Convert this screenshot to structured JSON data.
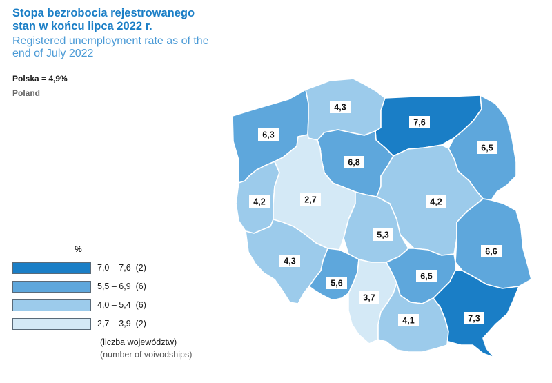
{
  "title": {
    "pl": "Stopa bezrobocia rejestrowanego stan w końcu lipca 2022 r.",
    "en": "Registered unemployment rate as of the end of July 2022"
  },
  "national": {
    "pl": "Polska = 4,9%",
    "en": "Poland"
  },
  "legend": {
    "unit": "%",
    "classes": [
      {
        "range": "7,0 – 7,6",
        "count": "(2)",
        "color": "#1a7ec6"
      },
      {
        "range": "5,5 – 6,9",
        "count": "(6)",
        "color": "#5ea7dc"
      },
      {
        "range": "4,0 – 5,4",
        "count": "(6)",
        "color": "#9ccbeb"
      },
      {
        "range": "2,7 – 3,9",
        "count": "(2)",
        "color": "#d4e9f6"
      }
    ],
    "note_pl": "(liczba województw)",
    "note_en": "(number of voivodships)"
  },
  "voivodships": [
    {
      "id": "zachodniopomorskie",
      "value": "6,3",
      "class": 1
    },
    {
      "id": "pomorskie",
      "value": "4,3",
      "class": 2
    },
    {
      "id": "warminsko-mazurskie",
      "value": "7,6",
      "class": 0
    },
    {
      "id": "podlaskie",
      "value": "6,5",
      "class": 1
    },
    {
      "id": "kujawsko-pomorskie",
      "value": "6,8",
      "class": 1
    },
    {
      "id": "lubuskie",
      "value": "4,2",
      "class": 2
    },
    {
      "id": "wielkopolskie",
      "value": "2,7",
      "class": 3
    },
    {
      "id": "mazowieckie",
      "value": "4,2",
      "class": 2
    },
    {
      "id": "lodzkie",
      "value": "5,3",
      "class": 2
    },
    {
      "id": "lubelskie",
      "value": "6,6",
      "class": 1
    },
    {
      "id": "dolnoslaskie",
      "value": "4,3",
      "class": 2
    },
    {
      "id": "opolskie",
      "value": "5,6",
      "class": 1
    },
    {
      "id": "slaskie",
      "value": "3,7",
      "class": 3
    },
    {
      "id": "swietokrzyskie",
      "value": "6,5",
      "class": 1
    },
    {
      "id": "malopolskie",
      "value": "4,1",
      "class": 2
    },
    {
      "id": "podkarpackie",
      "value": "7,3",
      "class": 0
    }
  ]
}
